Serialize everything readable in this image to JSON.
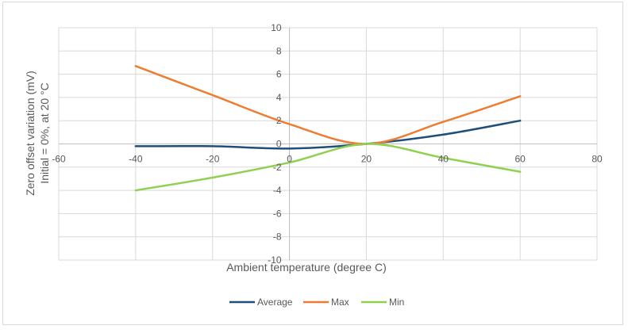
{
  "chart_data": {
    "type": "line",
    "title": "",
    "xlabel": "Ambient temperature (degree C)",
    "ylabel_lines": [
      "Zero offset variation (mV)",
      "Initial = 0%, at 20 °C"
    ],
    "xlim": [
      -60,
      80
    ],
    "ylim": [
      -10,
      10
    ],
    "x_ticks": [
      -60,
      -40,
      -20,
      0,
      20,
      40,
      60,
      80
    ],
    "y_ticks": [
      -10,
      -8,
      -6,
      -4,
      -2,
      0,
      2,
      4,
      6,
      8,
      10
    ],
    "grid": true,
    "legend_position": "bottom",
    "series": [
      {
        "name": "Average",
        "color": "#1f4e79",
        "points": [
          [
            -40,
            -0.2
          ],
          [
            -20,
            -0.2
          ],
          [
            0,
            -0.4
          ],
          [
            20,
            0
          ],
          [
            40,
            0.8
          ],
          [
            60,
            2.0
          ]
        ]
      },
      {
        "name": "Max",
        "color": "#ed7d31",
        "points": [
          [
            -40,
            6.7
          ],
          [
            -20,
            4.2
          ],
          [
            0,
            1.7
          ],
          [
            20,
            0
          ],
          [
            40,
            1.9
          ],
          [
            60,
            4.1
          ]
        ]
      },
      {
        "name": "Min",
        "color": "#8fd14f",
        "points": [
          [
            -40,
            -4.0
          ],
          [
            -20,
            -2.9
          ],
          [
            0,
            -1.6
          ],
          [
            20,
            0
          ],
          [
            40,
            -1.2
          ],
          [
            60,
            -2.4
          ]
        ]
      }
    ]
  }
}
